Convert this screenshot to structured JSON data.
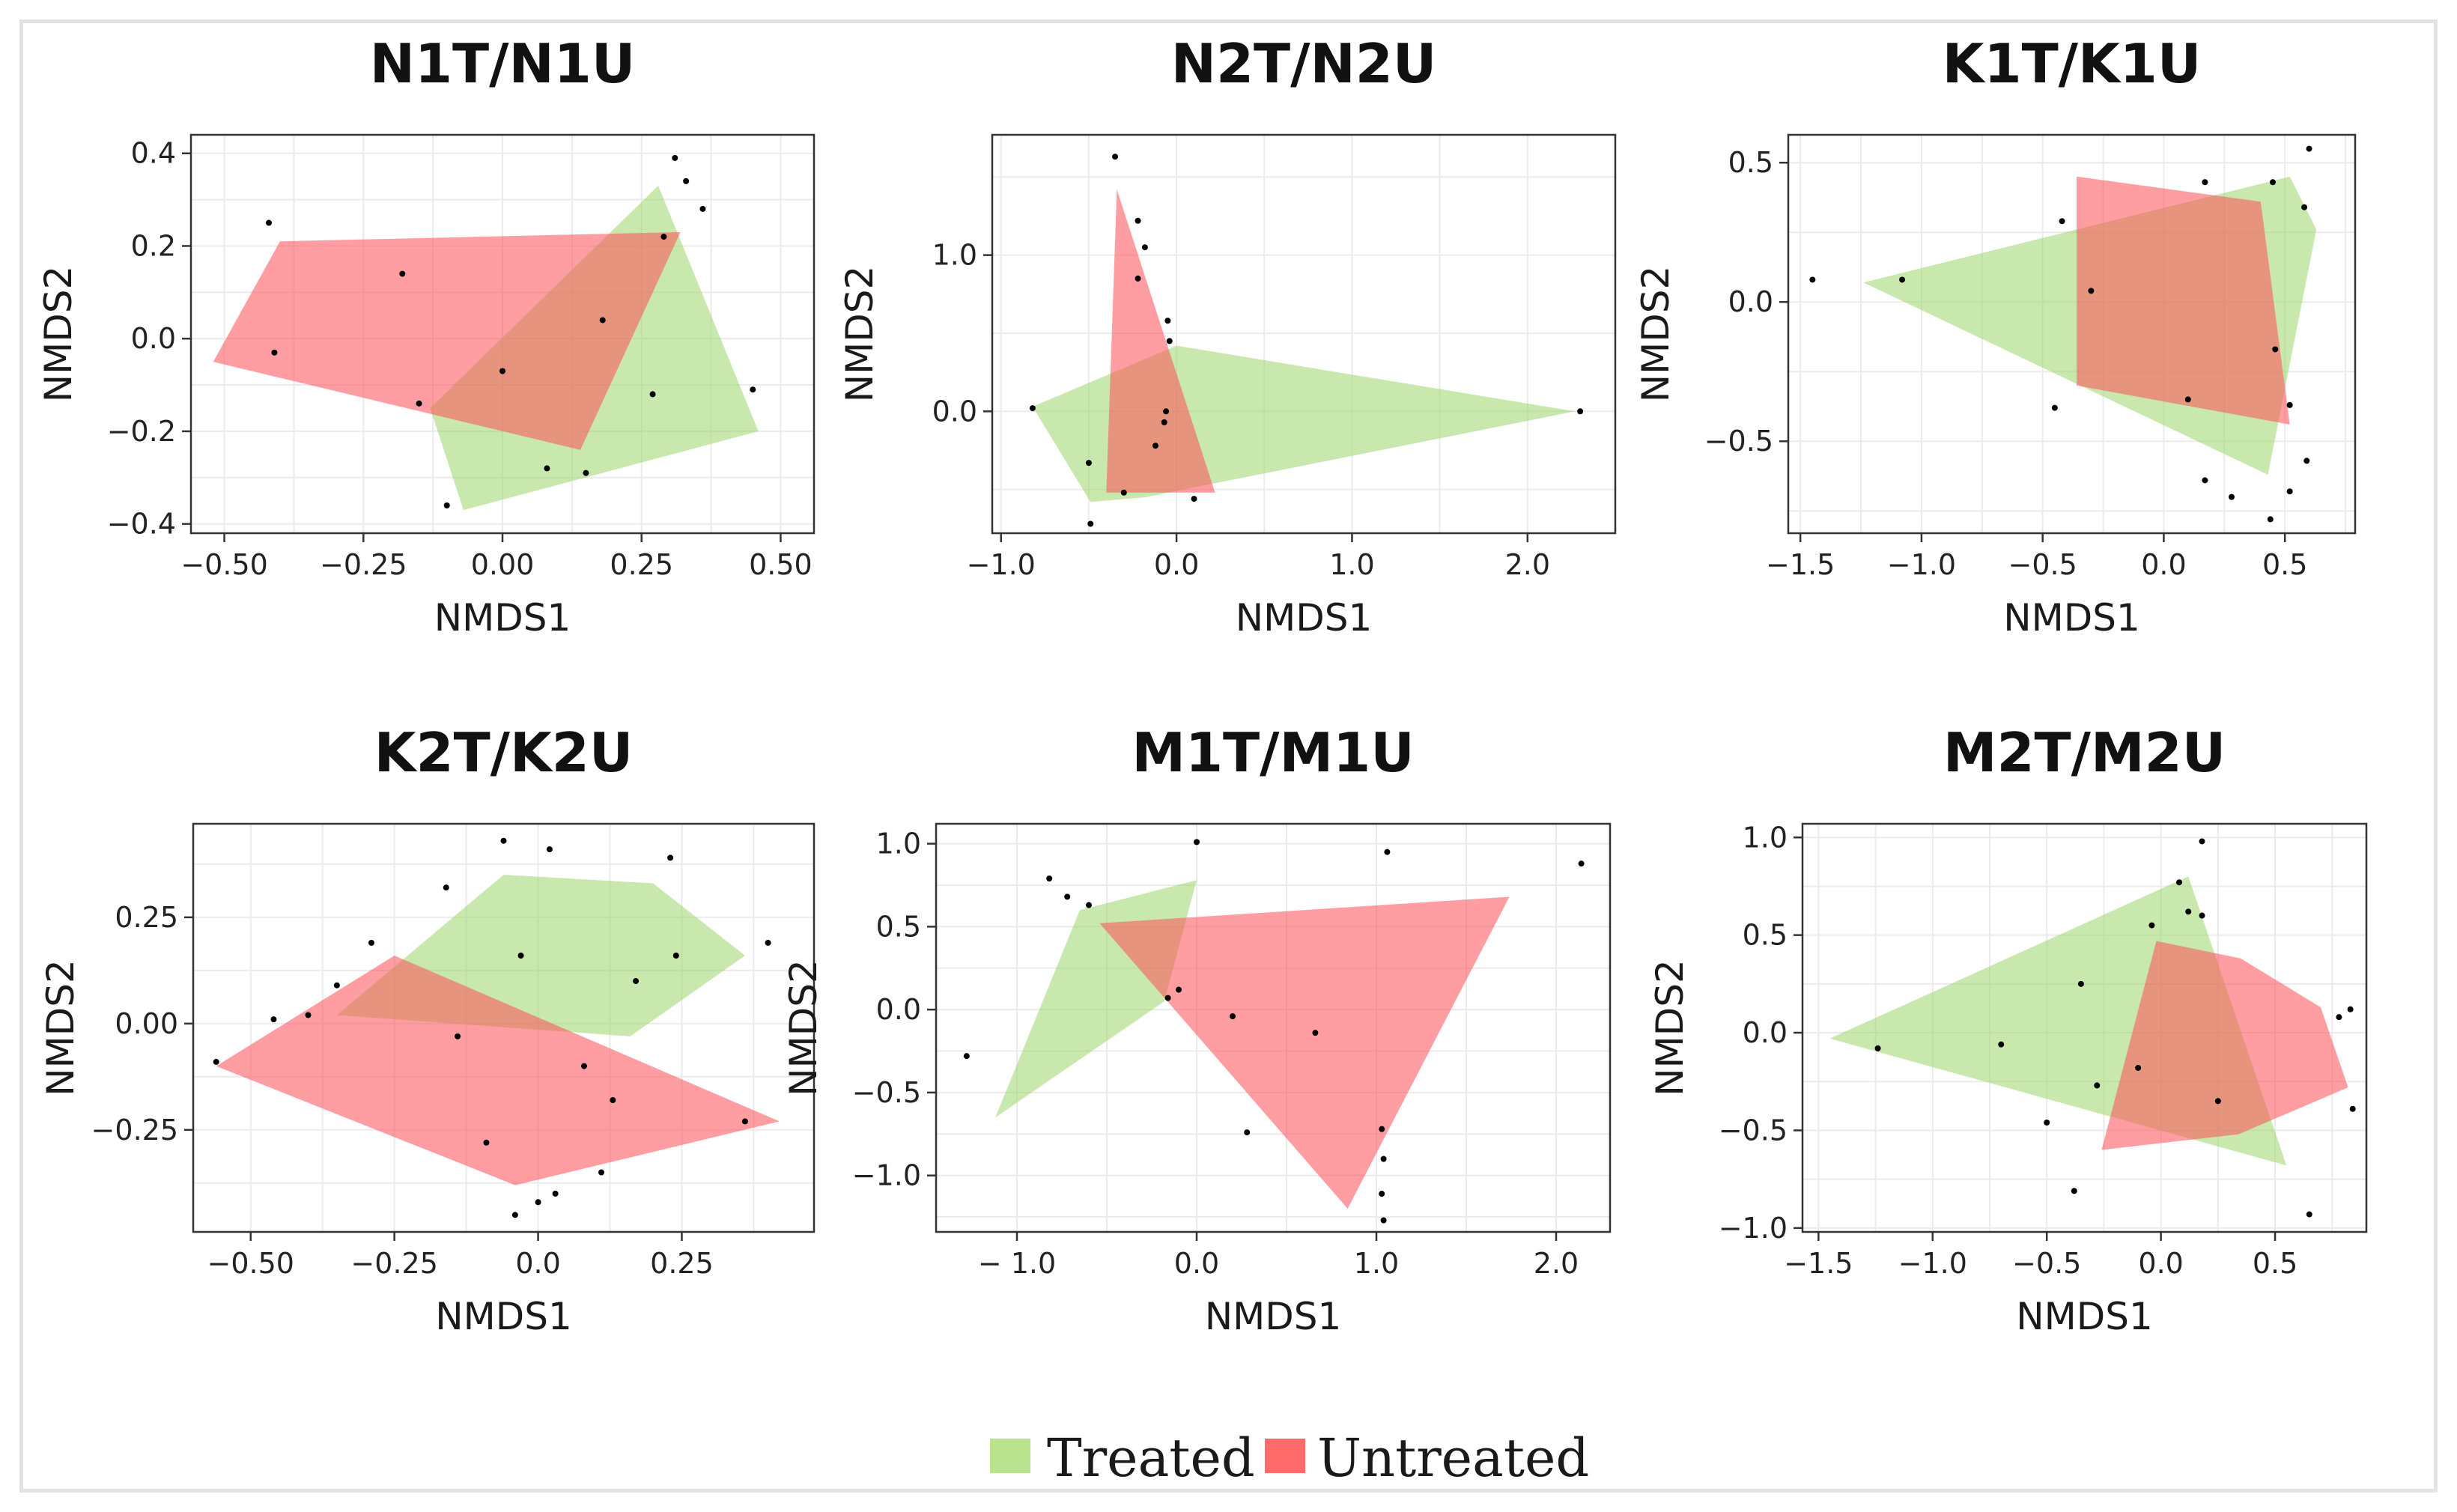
{
  "legend": {
    "entries": [
      {
        "label": "Treated",
        "color": "#b9e38f"
      },
      {
        "label": "Untreated",
        "color": "#ff6b6b"
      }
    ],
    "position": "bottom-center"
  },
  "colors": {
    "treated": "#9bd66a",
    "untreated": "#ff5a5f",
    "point": "#000000",
    "grid": "#ebebeb",
    "border": "#333333"
  },
  "chart_data": [
    {
      "type": "scatter",
      "title": "N1T/N1U",
      "xlabel": "NMDS1",
      "ylabel": "NMDS2",
      "xlim": [
        -0.56,
        0.56
      ],
      "ylim": [
        -0.42,
        0.44
      ],
      "xticks": [
        -0.5,
        -0.25,
        0.0,
        0.25,
        0.5
      ],
      "xtick_labels": [
        "−0.50",
        "−0.25",
        "0.00",
        "0.25",
        "0.50"
      ],
      "yticks": [
        -0.4,
        -0.2,
        0.0,
        0.2,
        0.4
      ],
      "ytick_labels": [
        "−0.4",
        "−0.2",
        "0.0",
        "0.2",
        "0.4"
      ],
      "series": [
        {
          "name": "Treated",
          "hull": [
            [
              -0.13,
              -0.15
            ],
            [
              0.28,
              0.33
            ],
            [
              0.46,
              -0.2
            ],
            [
              -0.07,
              -0.37
            ]
          ]
        },
        {
          "name": "Untreated",
          "hull": [
            [
              -0.52,
              -0.05
            ],
            [
              -0.4,
              0.21
            ],
            [
              0.32,
              0.23
            ],
            [
              0.14,
              -0.24
            ]
          ]
        }
      ],
      "points": [
        [
          -0.42,
          0.25
        ],
        [
          -0.41,
          -0.03
        ],
        [
          -0.18,
          0.14
        ],
        [
          -0.15,
          -0.14
        ],
        [
          -0.1,
          -0.36
        ],
        [
          0.0,
          -0.07
        ],
        [
          0.08,
          -0.28
        ],
        [
          0.15,
          -0.29
        ],
        [
          0.18,
          0.04
        ],
        [
          0.27,
          -0.12
        ],
        [
          0.29,
          0.22
        ],
        [
          0.31,
          0.39
        ],
        [
          0.33,
          0.34
        ],
        [
          0.36,
          0.28
        ],
        [
          0.45,
          -0.11
        ]
      ]
    },
    {
      "type": "scatter",
      "title": "N2T/N2U",
      "xlabel": "NMDS1",
      "ylabel": "NMDS2",
      "xlim": [
        -1.05,
        2.5
      ],
      "ylim": [
        -0.78,
        1.77
      ],
      "xticks": [
        -1.0,
        0.0,
        1.0,
        2.0
      ],
      "xtick_labels": [
        "−1.0",
        "0.0",
        "1.0",
        "2.0"
      ],
      "yticks": [
        0.0,
        1.0
      ],
      "ytick_labels": [
        "0.0",
        "1.0"
      ],
      "series": [
        {
          "name": "Treated",
          "hull": [
            [
              -0.82,
              0.03
            ],
            [
              0.0,
              0.42
            ],
            [
              2.27,
              0.0
            ],
            [
              -0.18,
              -0.55
            ],
            [
              -0.49,
              -0.58
            ]
          ]
        },
        {
          "name": "Untreated",
          "hull": [
            [
              -0.34,
              1.42
            ],
            [
              0.22,
              -0.52
            ],
            [
              -0.4,
              -0.52
            ]
          ]
        }
      ],
      "points": [
        [
          -0.35,
          1.63
        ],
        [
          -0.22,
          1.22
        ],
        [
          -0.18,
          1.05
        ],
        [
          -0.22,
          0.85
        ],
        [
          -0.05,
          0.58
        ],
        [
          -0.04,
          0.45
        ],
        [
          -0.06,
          0.0
        ],
        [
          -0.12,
          -0.22
        ],
        [
          -0.07,
          -0.07
        ],
        [
          -0.5,
          -0.33
        ],
        [
          -0.3,
          -0.52
        ],
        [
          0.1,
          -0.56
        ],
        [
          -0.49,
          -0.72
        ],
        [
          -0.82,
          0.02
        ],
        [
          2.3,
          0.0
        ]
      ]
    },
    {
      "type": "scatter",
      "title": "K1T/K1U",
      "xlabel": "NMDS1",
      "ylabel": "NMDS2",
      "xlim": [
        -1.55,
        0.79
      ],
      "ylim": [
        -0.83,
        0.6
      ],
      "xticks": [
        -1.5,
        -1.0,
        -0.5,
        0.0,
        0.5
      ],
      "xtick_labels": [
        "−1.5",
        "−1.0",
        "−0.5",
        "0.0",
        "0.5"
      ],
      "yticks": [
        -0.5,
        0.0,
        0.5
      ],
      "ytick_labels": [
        "−0.5",
        "0.0",
        "0.5"
      ],
      "series": [
        {
          "name": "Treated",
          "hull": [
            [
              -1.24,
              0.07
            ],
            [
              0.52,
              0.45
            ],
            [
              0.63,
              0.26
            ],
            [
              0.43,
              -0.62
            ]
          ]
        },
        {
          "name": "Untreated",
          "hull": [
            [
              -0.36,
              0.45
            ],
            [
              0.4,
              0.36
            ],
            [
              0.52,
              -0.44
            ],
            [
              -0.36,
              -0.3
            ]
          ]
        }
      ],
      "points": [
        [
          -1.45,
          0.08
        ],
        [
          -1.08,
          0.08
        ],
        [
          -0.42,
          0.29
        ],
        [
          -0.3,
          0.04
        ],
        [
          -0.45,
          -0.38
        ],
        [
          0.17,
          0.43
        ],
        [
          0.45,
          0.43
        ],
        [
          0.6,
          0.55
        ],
        [
          0.58,
          0.34
        ],
        [
          0.46,
          -0.17
        ],
        [
          0.1,
          -0.35
        ],
        [
          0.52,
          -0.37
        ],
        [
          0.17,
          -0.64
        ],
        [
          0.28,
          -0.7
        ],
        [
          0.52,
          -0.68
        ],
        [
          0.59,
          -0.57
        ],
        [
          0.44,
          -0.78
        ]
      ]
    },
    {
      "type": "scatter",
      "title": "K2T/K2U",
      "xlabel": "NMDS1",
      "ylabel": "NMDS2",
      "xlim": [
        -0.6,
        0.48
      ],
      "ylim": [
        -0.49,
        0.47
      ],
      "xticks": [
        -0.5,
        -0.25,
        0.0,
        0.25
      ],
      "xtick_labels": [
        "−0.50",
        "−0.25",
        "0.0",
        "0.25"
      ],
      "yticks": [
        -0.25,
        0.0,
        0.25
      ],
      "ytick_labels": [
        "−0.25",
        "0.00",
        "0.25"
      ],
      "series": [
        {
          "name": "Treated",
          "hull": [
            [
              -0.35,
              0.02
            ],
            [
              -0.06,
              0.35
            ],
            [
              0.2,
              0.33
            ],
            [
              0.36,
              0.16
            ],
            [
              0.16,
              -0.03
            ]
          ]
        },
        {
          "name": "Untreated",
          "hull": [
            [
              -0.56,
              -0.1
            ],
            [
              -0.25,
              0.16
            ],
            [
              0.42,
              -0.23
            ],
            [
              -0.04,
              -0.38
            ]
          ]
        }
      ],
      "points": [
        [
          -0.56,
          -0.09
        ],
        [
          -0.46,
          0.01
        ],
        [
          -0.4,
          0.02
        ],
        [
          -0.35,
          0.09
        ],
        [
          -0.29,
          0.19
        ],
        [
          -0.16,
          0.32
        ],
        [
          -0.14,
          -0.03
        ],
        [
          -0.06,
          0.43
        ],
        [
          0.02,
          0.41
        ],
        [
          -0.03,
          0.16
        ],
        [
          0.23,
          0.39
        ],
        [
          0.24,
          0.16
        ],
        [
          0.17,
          0.1
        ],
        [
          0.08,
          -0.1
        ],
        [
          0.13,
          -0.18
        ],
        [
          -0.09,
          -0.28
        ],
        [
          0.11,
          -0.35
        ],
        [
          0.36,
          -0.23
        ],
        [
          0.4,
          0.19
        ],
        [
          -0.04,
          -0.45
        ],
        [
          0.0,
          -0.42
        ],
        [
          0.03,
          -0.4
        ]
      ]
    },
    {
      "type": "scatter",
      "title": "M1T/M1U",
      "xlabel": "NMDS1",
      "ylabel": "NMDS2",
      "xlim": [
        -1.45,
        2.3
      ],
      "ylim": [
        -1.34,
        1.12
      ],
      "xticks": [
        -1.0,
        0.0,
        1.0,
        2.0
      ],
      "xtick_labels": [
        "− 1.0",
        "0.0",
        "1.0",
        "2.0"
      ],
      "yticks": [
        -1.0,
        -0.5,
        0.0,
        0.5,
        1.0
      ],
      "ytick_labels": [
        "−1.0",
        "−0.5",
        "0.0",
        "0.5",
        "1.0"
      ],
      "series": [
        {
          "name": "Treated",
          "hull": [
            [
              -1.12,
              -0.65
            ],
            [
              -0.65,
              0.6
            ],
            [
              0.0,
              0.78
            ],
            [
              -0.18,
              0.05
            ]
          ]
        },
        {
          "name": "Untreated",
          "hull": [
            [
              -0.54,
              0.52
            ],
            [
              1.74,
              0.68
            ],
            [
              0.84,
              -1.2
            ]
          ]
        }
      ],
      "points": [
        [
          -1.28,
          -0.28
        ],
        [
          -0.82,
          0.79
        ],
        [
          -0.72,
          0.68
        ],
        [
          -0.6,
          0.63
        ],
        [
          0.0,
          1.01
        ],
        [
          1.06,
          0.95
        ],
        [
          2.14,
          0.88
        ],
        [
          -0.16,
          0.07
        ],
        [
          -0.1,
          0.12
        ],
        [
          0.2,
          -0.04
        ],
        [
          0.66,
          -0.14
        ],
        [
          0.28,
          -0.74
        ],
        [
          1.03,
          -0.72
        ],
        [
          1.04,
          -0.9
        ],
        [
          1.03,
          -1.11
        ],
        [
          1.04,
          -1.27
        ]
      ]
    },
    {
      "type": "scatter",
      "title": "M2T/M2U",
      "xlabel": "NMDS1",
      "ylabel": "NMDS2",
      "xlim": [
        -1.57,
        0.9
      ],
      "ylim": [
        -1.02,
        1.07
      ],
      "xticks": [
        -1.5,
        -1.0,
        -0.5,
        0.0,
        0.5
      ],
      "xtick_labels": [
        "−1.5",
        "−1.0",
        "−0.5",
        "0.0",
        "0.5"
      ],
      "yticks": [
        -1.0,
        -0.5,
        0.0,
        0.5,
        1.0
      ],
      "ytick_labels": [
        "−1.0",
        "−0.5",
        "0.0",
        "0.5",
        "1.0"
      ],
      "series": [
        {
          "name": "Treated",
          "hull": [
            [
              -1.45,
              -0.03
            ],
            [
              0.12,
              0.8
            ],
            [
              0.55,
              -0.68
            ]
          ]
        },
        {
          "name": "Untreated",
          "hull": [
            [
              -0.02,
              0.47
            ],
            [
              0.35,
              0.38
            ],
            [
              0.7,
              0.13
            ],
            [
              0.82,
              -0.28
            ],
            [
              0.34,
              -0.52
            ],
            [
              -0.26,
              -0.6
            ]
          ]
        }
      ],
      "points": [
        [
          -1.24,
          -0.08
        ],
        [
          -0.7,
          -0.06
        ],
        [
          -0.35,
          0.25
        ],
        [
          -0.28,
          -0.27
        ],
        [
          -0.5,
          -0.46
        ],
        [
          -0.38,
          -0.81
        ],
        [
          0.18,
          0.98
        ],
        [
          0.08,
          0.77
        ],
        [
          0.18,
          0.6
        ],
        [
          0.12,
          0.62
        ],
        [
          -0.04,
          0.55
        ],
        [
          -0.1,
          -0.18
        ],
        [
          0.25,
          -0.35
        ],
        [
          0.78,
          0.08
        ],
        [
          0.83,
          0.12
        ],
        [
          0.84,
          -0.39
        ],
        [
          0.65,
          -0.93
        ]
      ]
    }
  ]
}
